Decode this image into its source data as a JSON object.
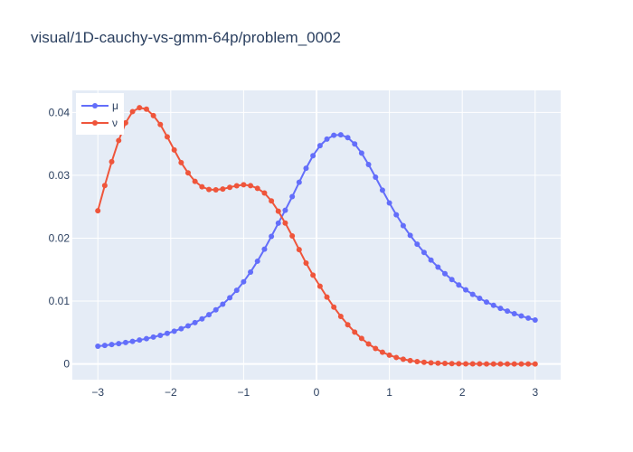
{
  "chart_data": {
    "type": "line",
    "title": "visual/1D-cauchy-vs-gmm-64p/problem_0002",
    "xlabel": "",
    "ylabel": "",
    "xlim": [
      -3.35,
      3.35
    ],
    "ylim": [
      -0.0025,
      0.0435
    ],
    "xticks": [
      -3,
      -2,
      -1,
      0,
      1,
      2,
      3
    ],
    "xtick_labels": [
      "−3",
      "−2",
      "−1",
      "0",
      "1",
      "2",
      "3"
    ],
    "yticks": [
      0,
      0.01,
      0.02,
      0.03,
      0.04
    ],
    "ytick_labels": [
      "0",
      "0.01",
      "0.02",
      "0.03",
      "0.04"
    ],
    "grid": true,
    "legend_position": "top-left",
    "x": [
      -3.0,
      -2.905,
      -2.81,
      -2.714,
      -2.619,
      -2.524,
      -2.429,
      -2.333,
      -2.238,
      -2.143,
      -2.048,
      -1.952,
      -1.857,
      -1.762,
      -1.667,
      -1.571,
      -1.476,
      -1.381,
      -1.286,
      -1.19,
      -1.095,
      -1.0,
      -0.905,
      -0.81,
      -0.714,
      -0.619,
      -0.524,
      -0.429,
      -0.333,
      -0.238,
      -0.143,
      -0.048,
      0.048,
      0.143,
      0.238,
      0.333,
      0.429,
      0.524,
      0.619,
      0.714,
      0.81,
      0.905,
      1.0,
      1.095,
      1.19,
      1.286,
      1.381,
      1.476,
      1.571,
      1.667,
      1.762,
      1.857,
      1.952,
      2.048,
      2.143,
      2.238,
      2.333,
      2.429,
      2.524,
      2.619,
      2.714,
      2.81,
      2.905,
      3.0
    ],
    "series": [
      {
        "name": "μ",
        "color": "#636efa",
        "values": [
          0.00282,
          0.00295,
          0.00309,
          0.00324,
          0.00341,
          0.00359,
          0.0038,
          0.00402,
          0.00427,
          0.00455,
          0.00486,
          0.00521,
          0.00561,
          0.00606,
          0.00658,
          0.00716,
          0.00784,
          0.00861,
          0.0095,
          0.01053,
          0.01171,
          0.01307,
          0.01461,
          0.01634,
          0.01825,
          0.02029,
          0.02238,
          0.02444,
          0.02661,
          0.02889,
          0.03112,
          0.03312,
          0.03471,
          0.03576,
          0.03637,
          0.03644,
          0.03599,
          0.03499,
          0.03352,
          0.03171,
          0.0297,
          0.02763,
          0.02561,
          0.02372,
          0.02199,
          0.02044,
          0.01904,
          0.01774,
          0.01652,
          0.0154,
          0.01436,
          0.01342,
          0.01256,
          0.01178,
          0.01107,
          0.01043,
          0.00985,
          0.00932,
          0.00884,
          0.0084,
          0.008,
          0.00763,
          0.00729,
          0.00698
        ]
      },
      {
        "name": "ν",
        "color": "#ef553b",
        "values": [
          0.02436,
          0.02837,
          0.03216,
          0.03553,
          0.03834,
          0.04013,
          0.04075,
          0.04052,
          0.0395,
          0.03808,
          0.03612,
          0.03403,
          0.03202,
          0.03038,
          0.02904,
          0.02817,
          0.02774,
          0.02768,
          0.02782,
          0.02809,
          0.02834,
          0.02849,
          0.02836,
          0.02792,
          0.02718,
          0.02593,
          0.0243,
          0.02241,
          0.02035,
          0.01818,
          0.01604,
          0.01412,
          0.01236,
          0.01064,
          0.00904,
          0.00757,
          0.00624,
          0.00507,
          0.00405,
          0.00318,
          0.00246,
          0.00187,
          0.0014,
          0.00103,
          0.00075,
          0.00054,
          0.00038,
          0.00026,
          0.00018,
          0.00012,
          8e-05,
          5e-05,
          3e-05,
          2e-05,
          1e-05,
          1e-05,
          0.0,
          0.0,
          0.0,
          0.0,
          0.0,
          0.0,
          0.0,
          0.0
        ]
      }
    ]
  }
}
